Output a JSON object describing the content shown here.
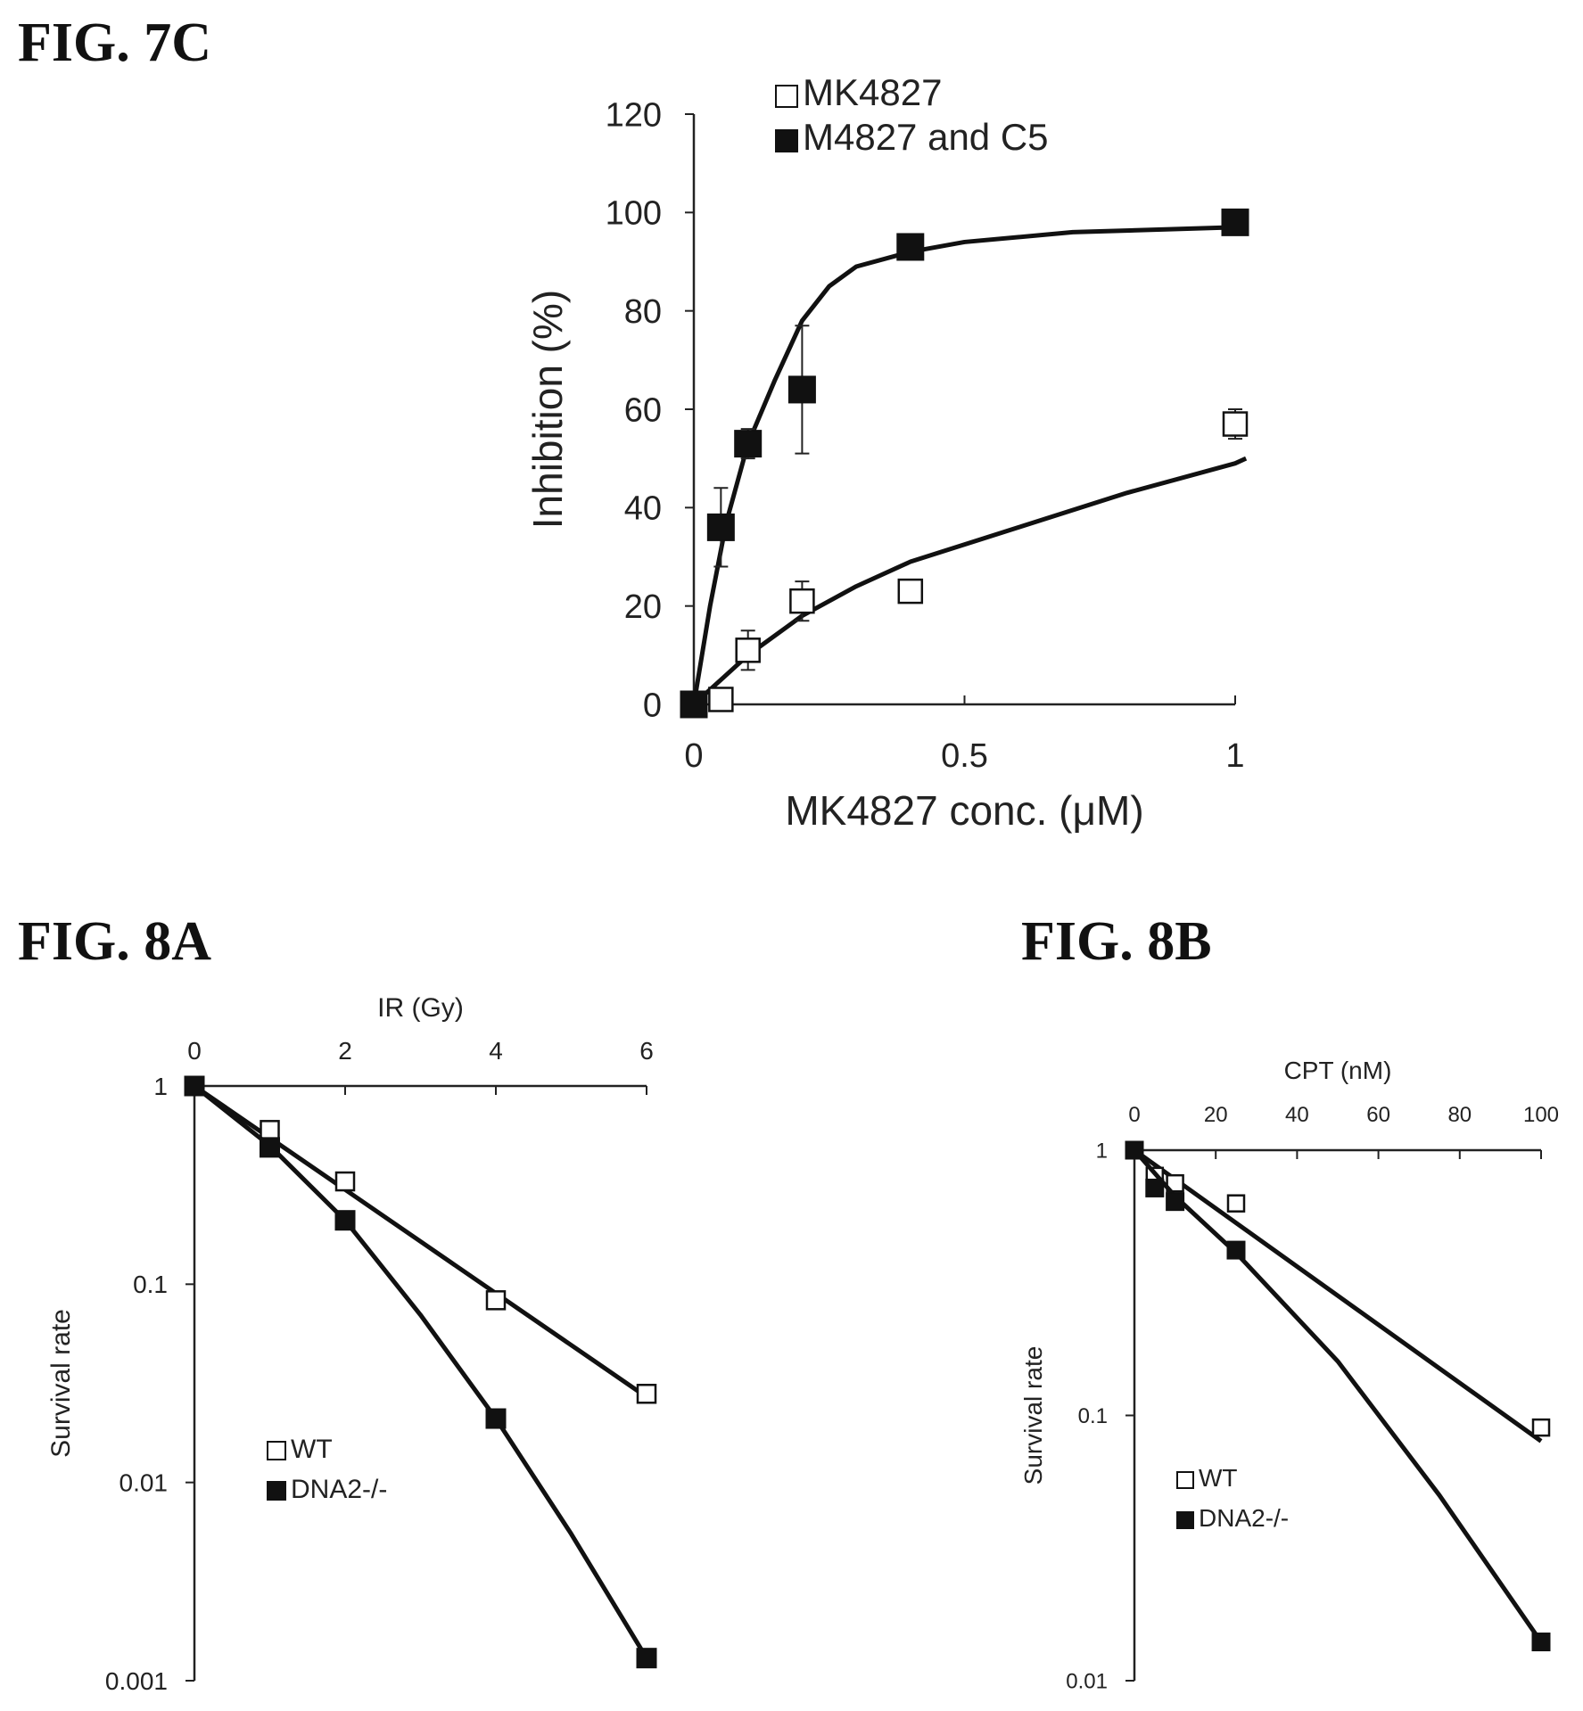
{
  "figures": {
    "fig7c": {
      "label": "FIG. 7C"
    },
    "fig8a": {
      "label": "FIG. 8A"
    },
    "fig8b": {
      "label": "FIG. 8B"
    }
  },
  "chart_data": [
    {
      "id": "fig7c",
      "type": "scatter",
      "title": "",
      "xlabel": "MK4827 conc. (μM)",
      "ylabel": "Inhibition (%)",
      "xlim": [
        0,
        1
      ],
      "ylim": [
        0,
        120
      ],
      "xticks": [
        "0",
        "0.5",
        "1"
      ],
      "yticks": [
        "0",
        "20",
        "40",
        "60",
        "80",
        "100",
        "120"
      ],
      "x_scale": "linear",
      "y_scale": "linear",
      "grid": false,
      "legend": "top-left",
      "series": [
        {
          "name": "MK4827",
          "marker": "open-square",
          "x": [
            0,
            0.05,
            0.1,
            0.2,
            0.4,
            1.0
          ],
          "y": [
            0,
            1,
            11,
            21,
            23,
            57
          ],
          "err": [
            0,
            2,
            4,
            4,
            2,
            3
          ],
          "curve_x": [
            0,
            0.05,
            0.1,
            0.2,
            0.3,
            0.4,
            0.6,
            0.8,
            1.0,
            1.02
          ],
          "curve_y": [
            0,
            5,
            10,
            18,
            24,
            29,
            36,
            43,
            49,
            50
          ]
        },
        {
          "name": "M4827 and C5",
          "marker": "filled-square",
          "x": [
            0,
            0.05,
            0.1,
            0.2,
            0.4,
            1.0
          ],
          "y": [
            0,
            36,
            53,
            64,
            93,
            98
          ],
          "err": [
            0,
            8,
            3,
            13,
            2,
            2
          ],
          "curve_x": [
            0,
            0.03,
            0.06,
            0.1,
            0.15,
            0.2,
            0.25,
            0.3,
            0.4,
            0.5,
            0.7,
            1.0
          ],
          "curve_y": [
            0,
            20,
            37,
            53,
            66,
            78,
            85,
            89,
            92,
            94,
            96,
            97
          ]
        }
      ]
    },
    {
      "id": "fig8a",
      "type": "scatter",
      "title": "",
      "xlabel": "IR (Gy)",
      "ylabel": "Survival rate",
      "xlim": [
        0,
        6
      ],
      "ylim": [
        0.001,
        1
      ],
      "xticks": [
        "0",
        "2",
        "4",
        "6"
      ],
      "yticks": [
        "0.001",
        "0.01",
        "0.1",
        "1"
      ],
      "x_scale": "linear",
      "y_scale": "log",
      "grid": false,
      "legend": "bottom-left",
      "series": [
        {
          "name": "WT",
          "marker": "open-square",
          "x": [
            0,
            1,
            2,
            4,
            6
          ],
          "y": [
            1,
            0.6,
            0.33,
            0.083,
            0.028
          ],
          "curve_x": [
            0,
            6
          ],
          "curve_y": [
            1,
            0.027
          ]
        },
        {
          "name": "DNA2-/-",
          "marker": "filled-square",
          "x": [
            0,
            1,
            2,
            4,
            6
          ],
          "y": [
            1,
            0.49,
            0.21,
            0.021,
            0.0013
          ],
          "curve_x": [
            0,
            1,
            2,
            3,
            4,
            5,
            6
          ],
          "curve_y": [
            1,
            0.5,
            0.21,
            0.07,
            0.021,
            0.0055,
            0.0013
          ]
        }
      ]
    },
    {
      "id": "fig8b",
      "type": "scatter",
      "title": "",
      "xlabel": "CPT (nM)",
      "ylabel": "Survival rate",
      "xlim": [
        0,
        100
      ],
      "ylim": [
        0.01,
        1
      ],
      "xticks": [
        "0",
        "20",
        "40",
        "60",
        "80",
        "100"
      ],
      "yticks": [
        "0.01",
        "0.1",
        "1"
      ],
      "x_scale": "linear",
      "y_scale": "log",
      "grid": false,
      "legend": "bottom-left",
      "series": [
        {
          "name": "WT",
          "marker": "open-square",
          "x": [
            0,
            5,
            10,
            25,
            100
          ],
          "y": [
            1,
            0.8,
            0.75,
            0.63,
            0.09
          ],
          "curve_x": [
            0,
            100
          ],
          "curve_y": [
            1,
            0.08
          ]
        },
        {
          "name": "DNA2-/-",
          "marker": "filled-square",
          "x": [
            0,
            5,
            10,
            25,
            100
          ],
          "y": [
            1,
            0.72,
            0.64,
            0.42,
            0.014
          ],
          "curve_x": [
            0,
            10,
            25,
            50,
            75,
            100
          ],
          "curve_y": [
            1,
            0.67,
            0.41,
            0.16,
            0.05,
            0.014
          ]
        }
      ]
    }
  ]
}
